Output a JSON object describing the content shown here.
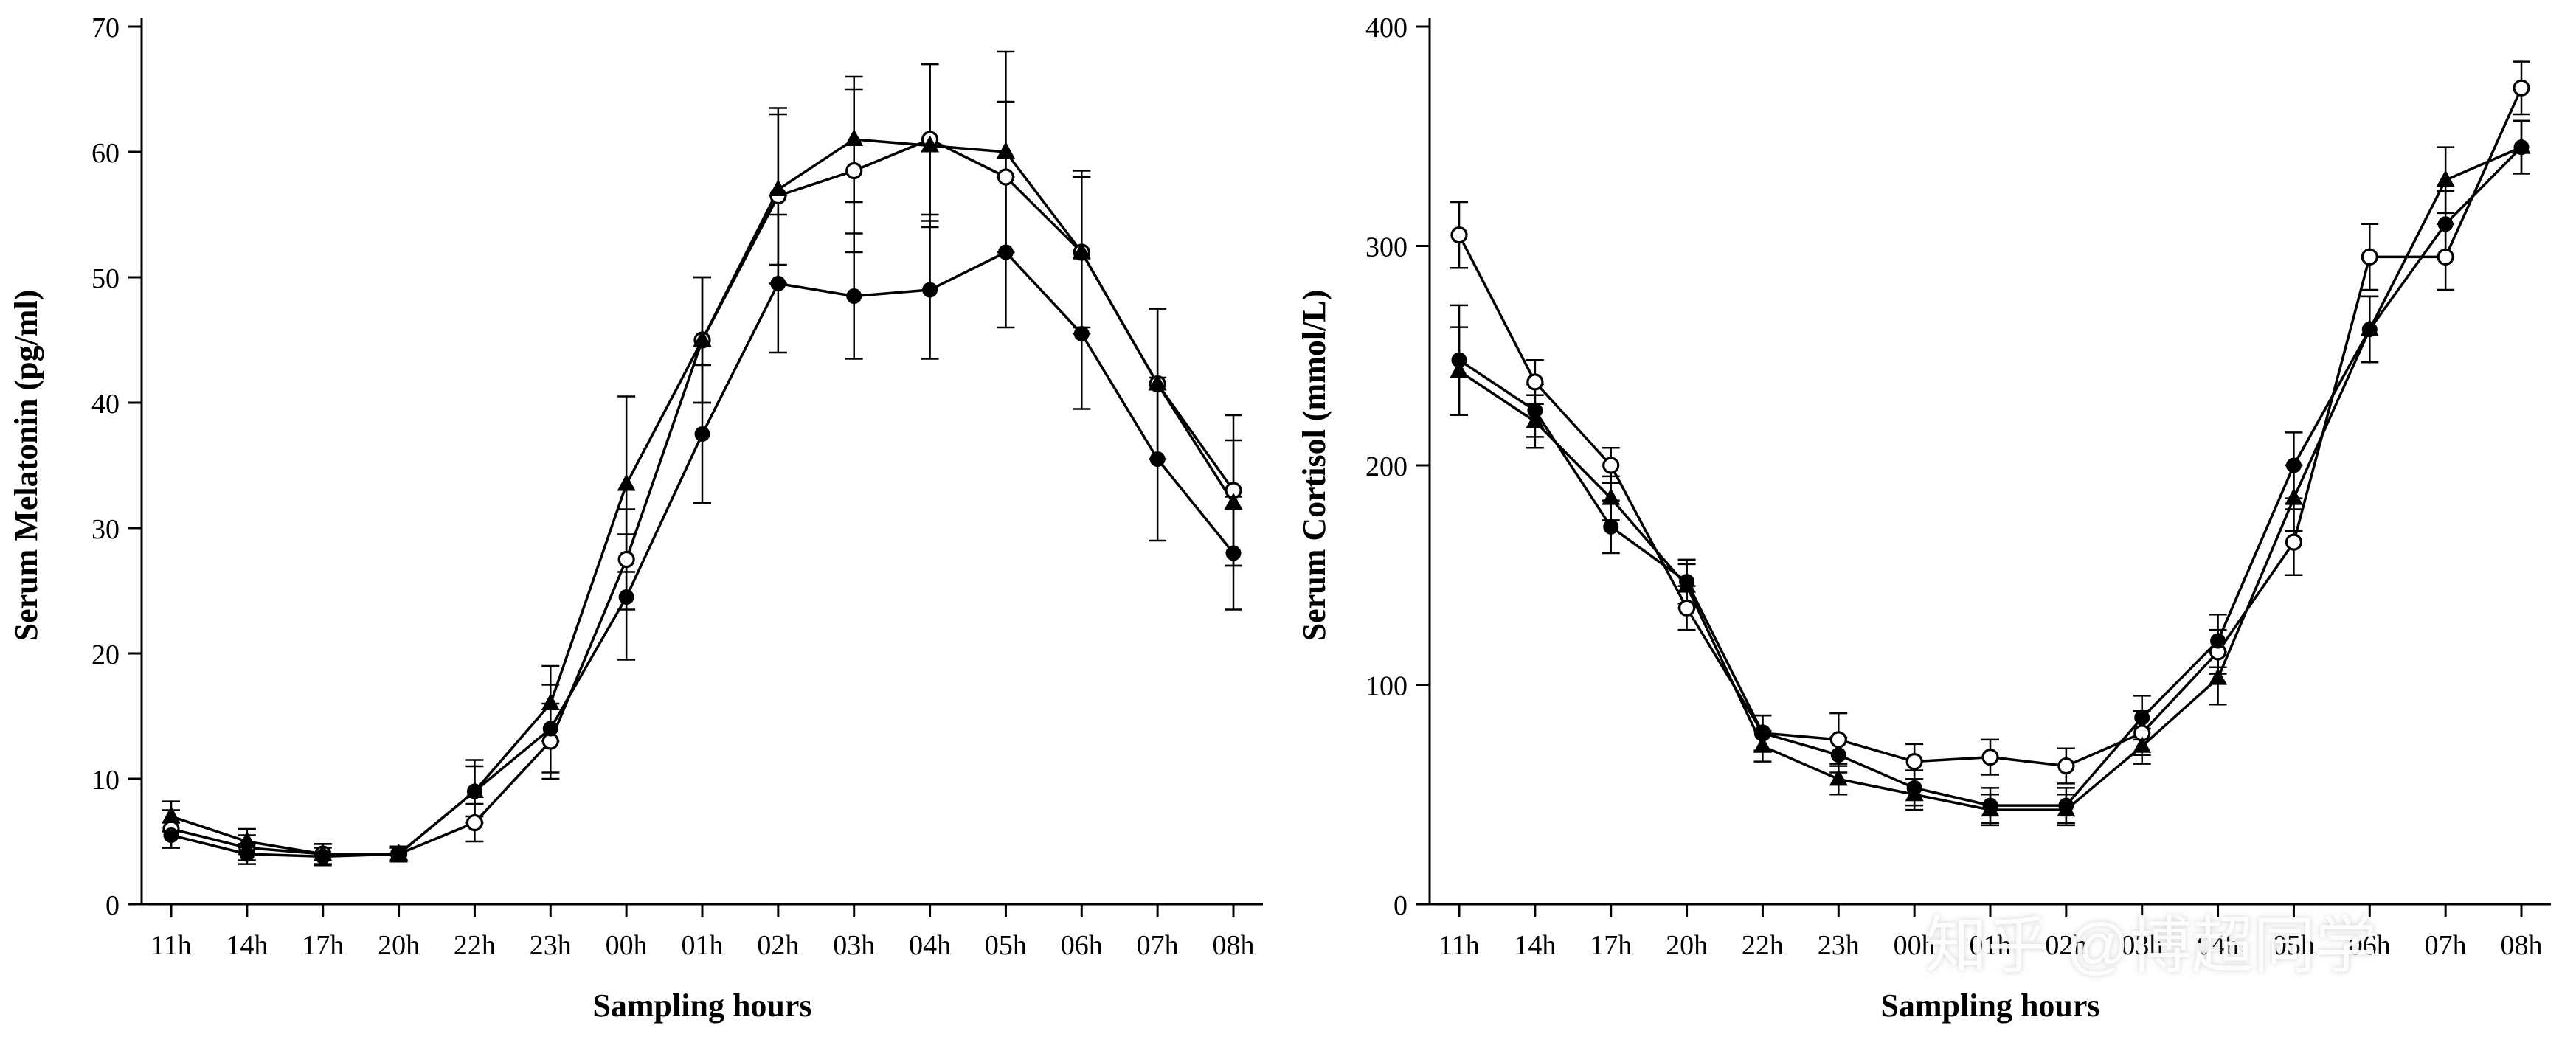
{
  "watermark": "知乎 @博超同学",
  "chart_data": [
    {
      "name": "serum-melatonin",
      "type": "line",
      "title": "",
      "xlabel": "Sampling hours",
      "ylabel": "Serum Melatonin (pg/ml)",
      "ylim": [
        0,
        70
      ],
      "ytick_step": 10,
      "grid": false,
      "legend": "none",
      "categories": [
        "11h",
        "14h",
        "17h",
        "20h",
        "22h",
        "23h",
        "00h",
        "01h",
        "02h",
        "03h",
        "04h",
        "05h",
        "06h",
        "07h",
        "08h"
      ],
      "series": [
        {
          "name": "open-circle-group",
          "marker": "open-circle",
          "values": [
            6,
            4.5,
            4,
            4,
            6.5,
            13,
            27.5,
            45,
            56.5,
            58.5,
            61,
            58,
            52,
            41.5,
            33
          ],
          "errors": [
            1.5,
            1,
            0.8,
            0.6,
            1.5,
            3,
            4,
            5,
            7,
            6.5,
            6,
            6,
            6.5,
            6,
            6
          ]
        },
        {
          "name": "filled-circle-group",
          "marker": "filled-circle",
          "values": [
            5.5,
            4,
            3.8,
            4,
            9,
            14,
            24.5,
            37.5,
            49.5,
            48.5,
            49,
            52,
            45.5,
            35.5,
            28
          ],
          "errors": [
            1,
            0.8,
            0.7,
            0.5,
            2,
            3.5,
            5,
            5.5,
            5.5,
            5,
            5.5,
            6,
            6,
            6.5,
            4.5
          ]
        },
        {
          "name": "filled-triangle-group",
          "marker": "filled-triangle",
          "values": [
            7,
            5,
            4,
            4,
            9,
            16,
            33.5,
            45,
            57,
            61,
            60.5,
            60,
            52,
            41.5,
            32
          ],
          "errors": [
            1.2,
            1,
            0.8,
            0.5,
            2.5,
            3,
            7,
            5,
            6,
            5,
            6.5,
            8,
            6,
            6,
            5
          ]
        }
      ]
    },
    {
      "name": "serum-cortisol",
      "type": "line",
      "title": "",
      "xlabel": "Sampling hours",
      "ylabel": "Serum Cortisol (mmol/L)",
      "ylim": [
        0,
        400
      ],
      "ytick_step": 100,
      "grid": false,
      "legend": "none",
      "categories": [
        "11h",
        "14h",
        "17h",
        "20h",
        "22h",
        "23h",
        "00h",
        "01h",
        "02h",
        "03h",
        "04h",
        "05h",
        "06h",
        "07h",
        "08h"
      ],
      "series": [
        {
          "name": "open-circle-group",
          "marker": "open-circle",
          "values": [
            305,
            238,
            200,
            135,
            78,
            75,
            65,
            67,
            63,
            78,
            115,
            165,
            295,
            295,
            372
          ],
          "errors": [
            15,
            10,
            8,
            10,
            8,
            12,
            8,
            8,
            8,
            10,
            10,
            15,
            15,
            15,
            12
          ]
        },
        {
          "name": "filled-circle-group",
          "marker": "filled-circle",
          "values": [
            248,
            225,
            172,
            147,
            78,
            68,
            53,
            45,
            45,
            85,
            120,
            200,
            262,
            310,
            345
          ],
          "errors": [
            25,
            12,
            12,
            10,
            8,
            8,
            8,
            8,
            8,
            10,
            12,
            15,
            15,
            15,
            12
          ]
        },
        {
          "name": "filled-triangle-group",
          "marker": "filled-triangle",
          "values": [
            243,
            220,
            185,
            145,
            72,
            57,
            50,
            43,
            43,
            72,
            103,
            185,
            262,
            330,
            345
          ],
          "errors": [
            20,
            12,
            10,
            10,
            7,
            7,
            7,
            7,
            7,
            8,
            12,
            15,
            15,
            15,
            12
          ]
        }
      ]
    }
  ]
}
